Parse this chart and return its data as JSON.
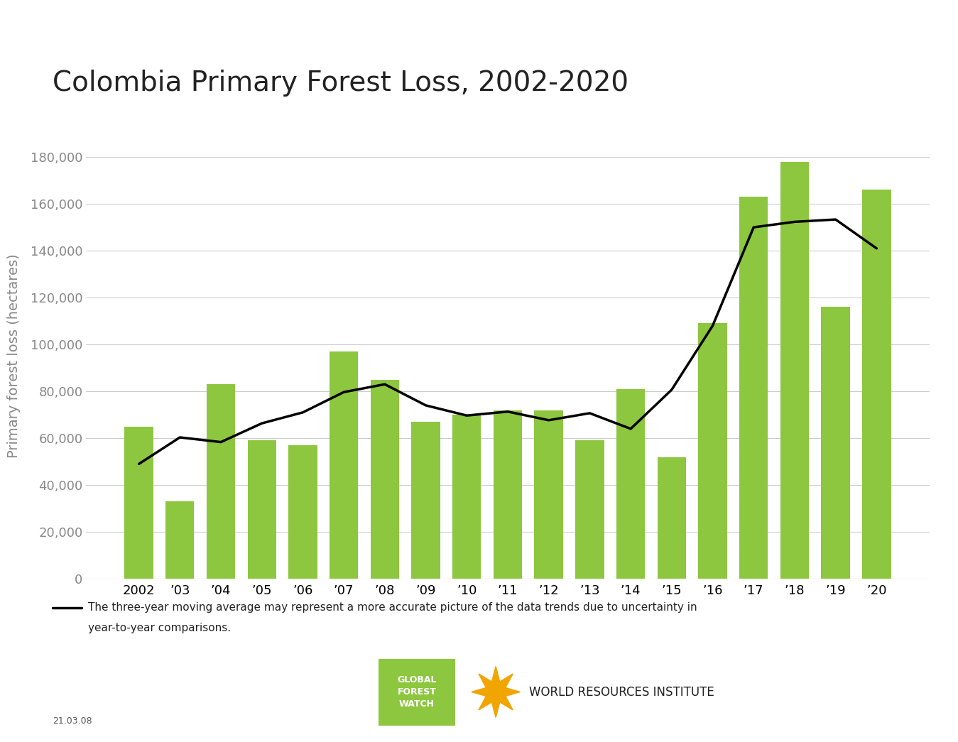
{
  "title": "Colombia Primary Forest Loss, 2002-2020",
  "ylabel": "Primary forest loss (hectares)",
  "years": [
    2002,
    2003,
    2004,
    2005,
    2006,
    2007,
    2008,
    2009,
    2010,
    2011,
    2012,
    2013,
    2014,
    2015,
    2016,
    2017,
    2018,
    2019,
    2020
  ],
  "bar_values": [
    65000,
    33000,
    83000,
    59000,
    57000,
    97000,
    85000,
    67000,
    70000,
    72000,
    72000,
    59000,
    81000,
    52000,
    109000,
    163000,
    178000,
    116000,
    166000
  ],
  "bar_color": "#8dc63f",
  "line_color": "#000000",
  "background_color": "#ffffff",
  "ylim": [
    0,
    190000
  ],
  "yticks": [
    0,
    20000,
    40000,
    60000,
    80000,
    100000,
    120000,
    140000,
    160000,
    180000
  ],
  "title_fontsize": 28,
  "axis_label_fontsize": 14,
  "tick_fontsize": 13,
  "legend_text_line1": "The three-year moving average may represent a more accurate picture of the data trends due to uncertainty in",
  "legend_text_line2": "year-to-year comparisons.",
  "footnote": "21.03.08",
  "gfw_box_color": "#8dc63f",
  "gfw_text": "GLOBAL\nFOREST\nWATCH",
  "wri_text": "WORLD RESOURCES INSTITUTE",
  "wri_icon_color": "#f0a500"
}
